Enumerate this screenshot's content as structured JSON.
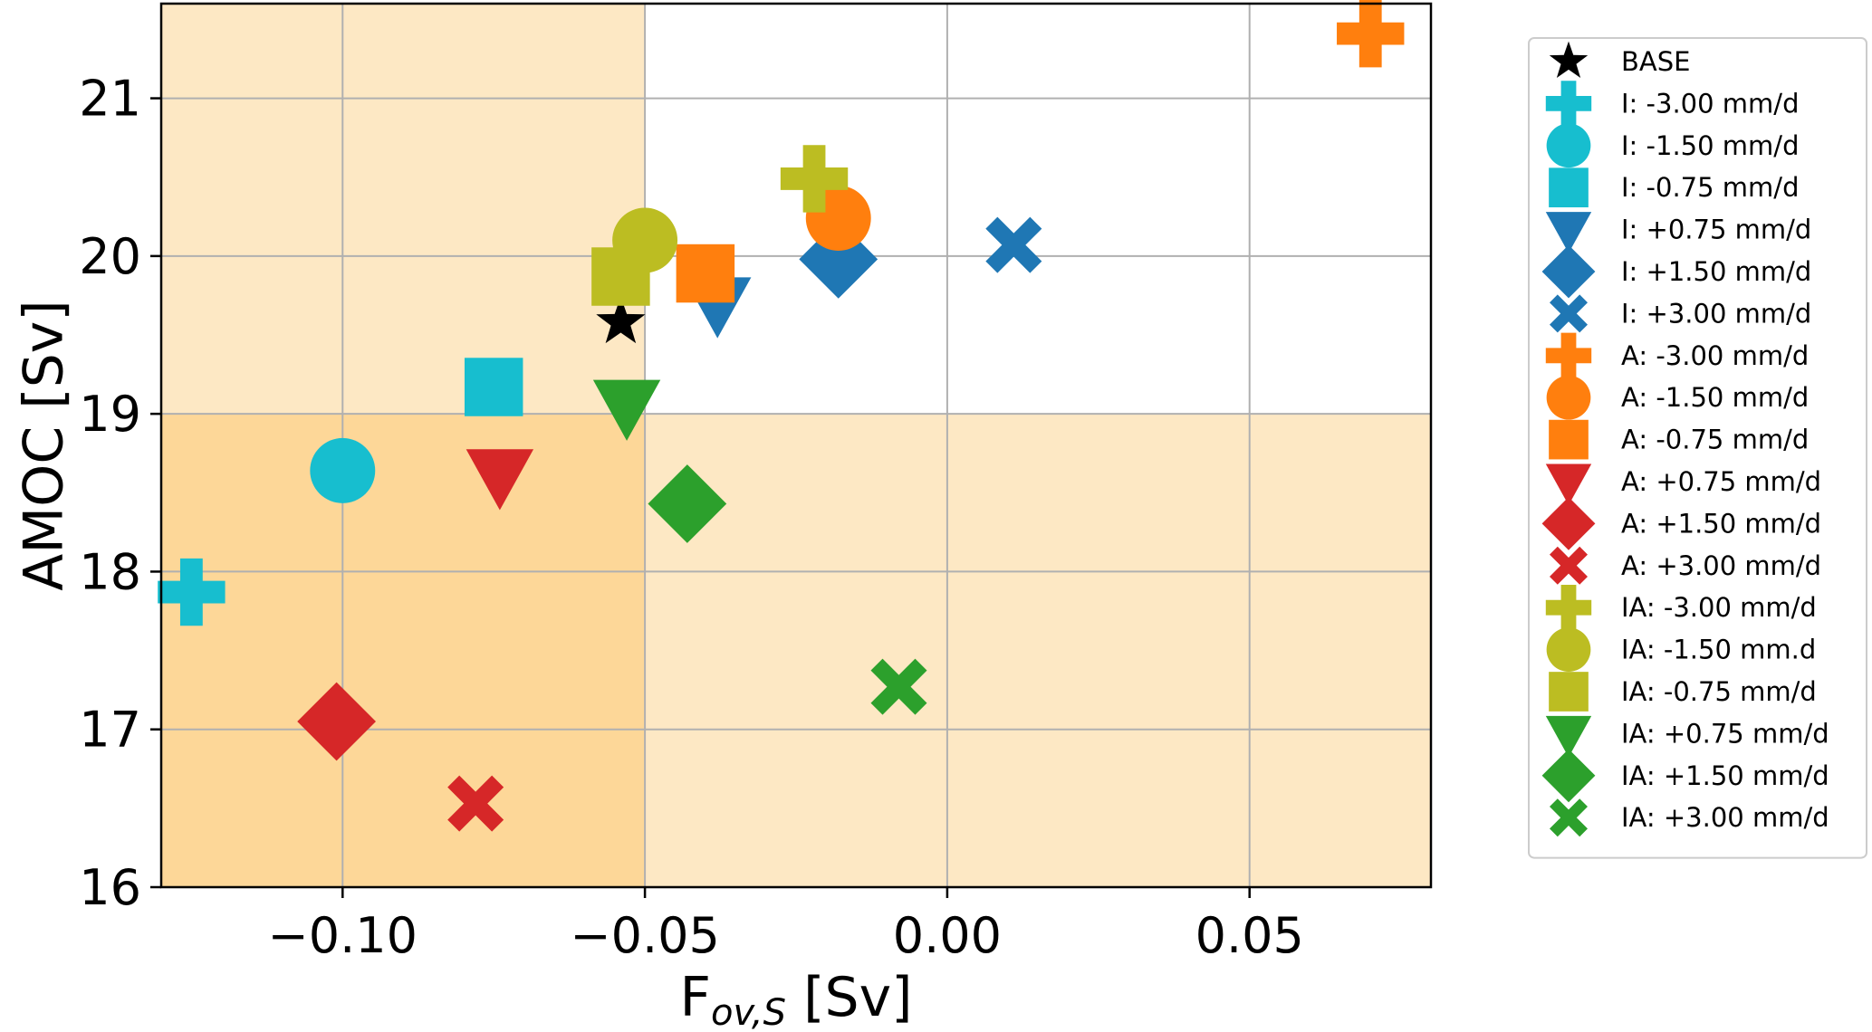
{
  "chart_data": {
    "type": "scatter",
    "xlabel": "F",
    "xlabel_sub": "ov,S",
    "xlabel_unit": " [Sv]",
    "ylabel": "AMOC [Sv]",
    "xlim": [
      -0.13,
      0.08
    ],
    "ylim": [
      16,
      21.6
    ],
    "xticks": [
      -0.1,
      -0.05,
      0.0,
      0.05
    ],
    "xtick_labels": [
      "−0.10",
      "−0.05",
      "0.00",
      "0.05"
    ],
    "yticks": [
      16,
      17,
      18,
      19,
      20,
      21
    ],
    "ytick_labels": [
      "16",
      "17",
      "18",
      "19",
      "20",
      "21"
    ],
    "grid": true,
    "legend_position": "outside-right",
    "threshold": {
      "x": -0.05,
      "y": 19
    },
    "shading_colors": {
      "light": "#fde8c4",
      "dark": "#fdd798"
    },
    "series": [
      {
        "name": "BASE",
        "marker": "star",
        "color": "#000000",
        "x": -0.054,
        "y": 19.58
      },
      {
        "name": "I: -3.00 mm/d",
        "marker": "plus",
        "color": "#17becf",
        "x": -0.125,
        "y": 17.87
      },
      {
        "name": "I: -1.50 mm/d",
        "marker": "circle",
        "color": "#17becf",
        "x": -0.1,
        "y": 18.64
      },
      {
        "name": "I: -0.75 mm/d",
        "marker": "square",
        "color": "#17becf",
        "x": -0.075,
        "y": 19.17
      },
      {
        "name": "I: +0.75 mm/d",
        "marker": "triangle-down",
        "color": "#1f77b4",
        "x": -0.038,
        "y": 19.7
      },
      {
        "name": "I: +1.50 mm/d",
        "marker": "diamond",
        "color": "#1f77b4",
        "x": -0.018,
        "y": 19.98
      },
      {
        "name": "I: +3.00 mm/d",
        "marker": "x",
        "color": "#1f77b4",
        "x": 0.011,
        "y": 20.07
      },
      {
        "name": "A: -3.00 mm/d",
        "marker": "plus",
        "color": "#ff7f0e",
        "x": 0.07,
        "y": 21.41
      },
      {
        "name": "A: -1.50 mm/d",
        "marker": "circle",
        "color": "#ff7f0e",
        "x": -0.018,
        "y": 20.24
      },
      {
        "name": "A: -0.75 mm/d",
        "marker": "square",
        "color": "#ff7f0e",
        "x": -0.04,
        "y": 19.89
      },
      {
        "name": "A: +0.75 mm/d",
        "marker": "triangle-down",
        "color": "#d62728",
        "x": -0.074,
        "y": 18.61
      },
      {
        "name": "A: +1.50 mm/d",
        "marker": "diamond",
        "color": "#d62728",
        "x": -0.101,
        "y": 17.05
      },
      {
        "name": "A: +3.00 mm/d",
        "marker": "x",
        "color": "#d62728",
        "x": -0.078,
        "y": 16.53
      },
      {
        "name": "IA: -3.00 mm/d",
        "marker": "plus",
        "color": "#bcbd22",
        "x": -0.022,
        "y": 20.49
      },
      {
        "name": "IA: -1.50 mm.d",
        "marker": "circle",
        "color": "#bcbd22",
        "x": -0.05,
        "y": 20.1
      },
      {
        "name": "IA: -0.75 mm/d",
        "marker": "square",
        "color": "#bcbd22",
        "x": -0.054,
        "y": 19.87
      },
      {
        "name": "IA: +0.75 mm/d",
        "marker": "triangle-down",
        "color": "#2ca02c",
        "x": -0.053,
        "y": 19.05
      },
      {
        "name": "IA: +1.50 mm/d",
        "marker": "diamond",
        "color": "#2ca02c",
        "x": -0.043,
        "y": 18.43
      },
      {
        "name": "IA: +3.00 mm/d",
        "marker": "x",
        "color": "#2ca02c",
        "x": -0.008,
        "y": 17.27
      }
    ]
  }
}
